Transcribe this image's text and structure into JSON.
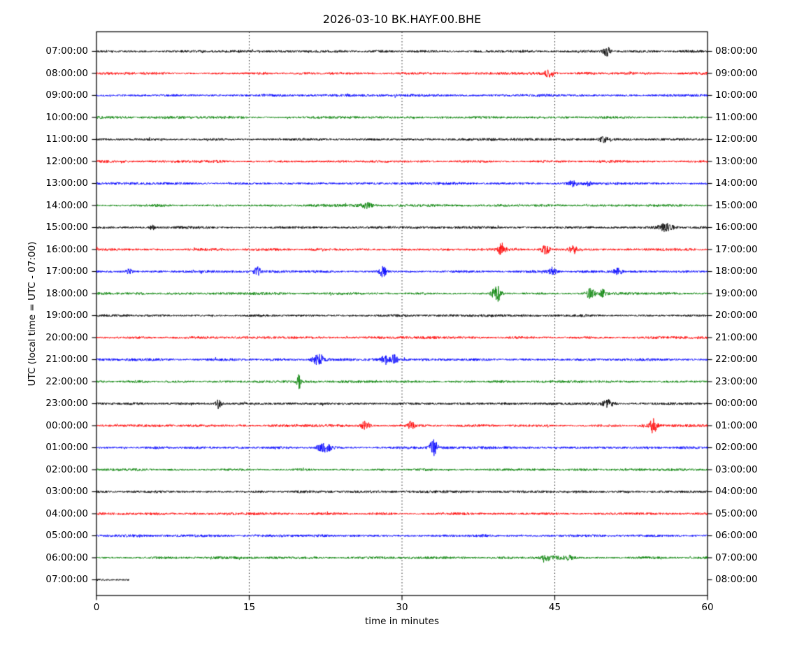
{
  "title": "2026-03-10 BK.HAYF.00.BHE",
  "axes": {
    "xlabel": "time in minutes",
    "ylabel": "UTC (local time = UTC - 07:00)",
    "x_tick_labels": [
      "0",
      "15",
      "30",
      "45",
      "60"
    ],
    "x_gridlines_minutes": [
      15,
      30,
      45
    ]
  },
  "colors": {
    "black": "#000000",
    "red": "#ff0000",
    "blue": "#0000ff",
    "green": "#008000",
    "axis": "#000000",
    "background": "#ffffff"
  },
  "chart_data": {
    "type": "line",
    "kind": "seismogram-dayplot",
    "station_id": "BK.HAYF.00.BHE",
    "date": "2026-03-10",
    "x_range_minutes": [
      0,
      60
    ],
    "minutes_per_row": 60,
    "trace_color_cycle": [
      "black",
      "red",
      "blue",
      "green"
    ],
    "rows": [
      {
        "left_label": "07:00:00",
        "right_label": "08:00:00",
        "color": "black",
        "extent_min": [
          0,
          60
        ],
        "spikes": [
          [
            50.1,
            7,
            0.25
          ]
        ]
      },
      {
        "left_label": "08:00:00",
        "right_label": "09:00:00",
        "color": "red",
        "extent_min": [
          0,
          60
        ],
        "spikes": [
          [
            44.5,
            5,
            0.35
          ]
        ]
      },
      {
        "left_label": "09:00:00",
        "right_label": "10:00:00",
        "color": "blue",
        "extent_min": [
          0,
          60
        ],
        "spikes": []
      },
      {
        "left_label": "10:00:00",
        "right_label": "11:00:00",
        "color": "green",
        "extent_min": [
          0,
          60
        ],
        "spikes": []
      },
      {
        "left_label": "11:00:00",
        "right_label": "12:00:00",
        "color": "black",
        "extent_min": [
          0,
          60
        ],
        "spikes": [
          [
            49.8,
            3.5,
            0.3
          ]
        ]
      },
      {
        "left_label": "12:00:00",
        "right_label": "13:00:00",
        "color": "red",
        "extent_min": [
          0,
          60
        ],
        "spikes": []
      },
      {
        "left_label": "13:00:00",
        "right_label": "14:00:00",
        "color": "blue",
        "extent_min": [
          0,
          60
        ],
        "spikes": [
          [
            46.8,
            4,
            0.3
          ],
          [
            48.2,
            3.5,
            0.25
          ]
        ]
      },
      {
        "left_label": "14:00:00",
        "right_label": "15:00:00",
        "color": "green",
        "extent_min": [
          0,
          60
        ],
        "spikes": [
          [
            26.5,
            3.5,
            0.4
          ]
        ]
      },
      {
        "left_label": "15:00:00",
        "right_label": "16:00:00",
        "color": "black",
        "extent_min": [
          0,
          60
        ],
        "spikes": [
          [
            5.5,
            3,
            0.2
          ],
          [
            55.9,
            5,
            0.5
          ]
        ]
      },
      {
        "left_label": "16:00:00",
        "right_label": "17:00:00",
        "color": "red",
        "extent_min": [
          0,
          60
        ],
        "spikes": [
          [
            39.8,
            8,
            0.25
          ],
          [
            44.1,
            6,
            0.3
          ],
          [
            46.8,
            6,
            0.25
          ]
        ]
      },
      {
        "left_label": "17:00:00",
        "right_label": "18:00:00",
        "color": "blue",
        "extent_min": [
          0,
          60
        ],
        "spikes": [
          [
            3.2,
            4,
            0.2
          ],
          [
            15.8,
            7,
            0.25
          ],
          [
            28.1,
            7,
            0.25
          ],
          [
            44.8,
            4,
            0.3
          ],
          [
            51.2,
            4.5,
            0.3
          ]
        ]
      },
      {
        "left_label": "18:00:00",
        "right_label": "19:00:00",
        "color": "green",
        "extent_min": [
          0,
          60
        ],
        "spikes": [
          [
            39.3,
            12,
            0.3
          ],
          [
            48.5,
            7,
            0.3
          ],
          [
            49.7,
            5,
            0.2
          ]
        ]
      },
      {
        "left_label": "19:00:00",
        "right_label": "20:00:00",
        "color": "black",
        "extent_min": [
          0,
          60
        ],
        "spikes": []
      },
      {
        "left_label": "20:00:00",
        "right_label": "21:00:00",
        "color": "red",
        "extent_min": [
          0,
          60
        ],
        "spikes": []
      },
      {
        "left_label": "21:00:00",
        "right_label": "22:00:00",
        "color": "blue",
        "extent_min": [
          0,
          60
        ],
        "spikes": [
          [
            21.8,
            8,
            0.4
          ],
          [
            28.3,
            6.5,
            0.25
          ],
          [
            29.2,
            7,
            0.25
          ]
        ]
      },
      {
        "left_label": "22:00:00",
        "right_label": "23:00:00",
        "color": "green",
        "extent_min": [
          0,
          60
        ],
        "spikes": [
          [
            19.9,
            9,
            0.15
          ]
        ]
      },
      {
        "left_label": "23:00:00",
        "right_label": "00:00:00",
        "color": "black",
        "extent_min": [
          0,
          60
        ],
        "spikes": [
          [
            12.0,
            7,
            0.2
          ],
          [
            50.2,
            4.5,
            0.4
          ]
        ]
      },
      {
        "left_label": "00:00:00",
        "right_label": "01:00:00",
        "color": "red",
        "extent_min": [
          0,
          60
        ],
        "spikes": [
          [
            26.4,
            6,
            0.3
          ],
          [
            30.9,
            6.5,
            0.2
          ],
          [
            54.7,
            11,
            0.25
          ]
        ]
      },
      {
        "left_label": "01:00:00",
        "right_label": "02:00:00",
        "color": "blue",
        "extent_min": [
          0,
          60
        ],
        "spikes": [
          [
            22.4,
            5.5,
            0.5
          ],
          [
            33.1,
            12,
            0.25
          ]
        ]
      },
      {
        "left_label": "02:00:00",
        "right_label": "03:00:00",
        "color": "green",
        "extent_min": [
          0,
          60
        ],
        "spikes": []
      },
      {
        "left_label": "03:00:00",
        "right_label": "04:00:00",
        "color": "black",
        "extent_min": [
          0,
          60
        ],
        "spikes": []
      },
      {
        "left_label": "04:00:00",
        "right_label": "05:00:00",
        "color": "red",
        "extent_min": [
          0,
          60
        ],
        "spikes": []
      },
      {
        "left_label": "05:00:00",
        "right_label": "06:00:00",
        "color": "blue",
        "extent_min": [
          0,
          60
        ],
        "spikes": []
      },
      {
        "left_label": "06:00:00",
        "right_label": "07:00:00",
        "color": "green",
        "extent_min": [
          0,
          60
        ],
        "spikes": [
          [
            44.5,
            3.5,
            0.6
          ],
          [
            46.3,
            3,
            0.4
          ]
        ]
      },
      {
        "left_label": "07:00:00",
        "right_label": "08:00:00",
        "color": "black",
        "extent_min": [
          0,
          3.2
        ],
        "spikes": []
      }
    ]
  }
}
